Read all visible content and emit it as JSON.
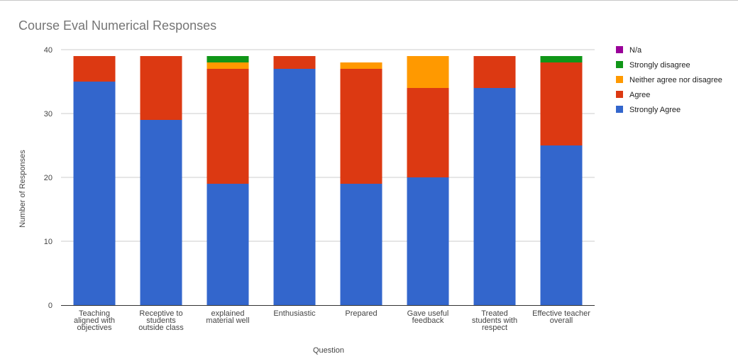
{
  "chart_data": {
    "type": "bar",
    "stacked": true,
    "title": "Course Eval Numerical Responses",
    "xlabel": "Question",
    "ylabel": "Number of Responses",
    "ylim": [
      0,
      40
    ],
    "yticks": [
      0,
      10,
      20,
      30,
      40
    ],
    "grid": true,
    "legend_position": "right",
    "categories": [
      [
        "Teaching",
        "aligned with",
        "objectives"
      ],
      [
        "Receptive to",
        "students",
        "outside class"
      ],
      [
        "explained",
        "material well"
      ],
      [
        "Enthusiastic"
      ],
      [
        "Prepared"
      ],
      [
        "Gave useful",
        "feedback"
      ],
      [
        "Treated",
        "students with",
        "respect"
      ],
      [
        "Effective teacher",
        "overall"
      ]
    ],
    "series": [
      {
        "name": "Strongly Agree",
        "color": "#3366cc",
        "values": [
          35,
          29,
          19,
          37,
          19,
          20,
          34,
          25
        ]
      },
      {
        "name": "Agree",
        "color": "#dc3912",
        "values": [
          4,
          10,
          18,
          2,
          18,
          14,
          5,
          13
        ]
      },
      {
        "name": "Neither agree nor disagree",
        "color": "#ff9900",
        "values": [
          0,
          0,
          1,
          0,
          1,
          5,
          0,
          0
        ]
      },
      {
        "name": "Strongly disagree",
        "color": "#109618",
        "values": [
          0,
          0,
          1,
          0,
          0,
          0,
          0,
          1
        ]
      },
      {
        "name": "N/a",
        "color": "#990099",
        "values": [
          0,
          0,
          0,
          0,
          0,
          0,
          0,
          0
        ]
      }
    ],
    "legend_order": [
      "N/a",
      "Strongly disagree",
      "Neither agree nor disagree",
      "Agree",
      "Strongly Agree"
    ]
  }
}
